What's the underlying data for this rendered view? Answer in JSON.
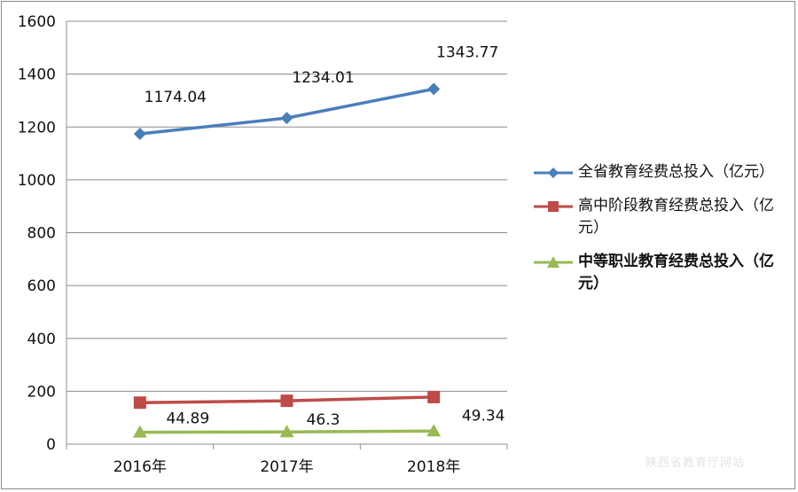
{
  "chart_data": {
    "type": "line",
    "categories": [
      "2016年",
      "2017年",
      "2018年"
    ],
    "ylim": [
      0,
      1600
    ],
    "yticks": [
      "0",
      "200",
      "400",
      "600",
      "800",
      "1000",
      "1200",
      "1400",
      "1600"
    ],
    "grid": true,
    "legend_position": "right",
    "series": [
      {
        "name": "全省教育经费总投入（亿元）",
        "values": [
          1174.04,
          1234.01,
          1343.77
        ],
        "labels": [
          "1174.04",
          "1234.01",
          "1343.77"
        ],
        "color": "#4a7ebb",
        "marker": "diamond"
      },
      {
        "name": "高中阶段教育经费总投入（亿元）",
        "values": [
          157,
          164,
          178
        ],
        "labels": [
          "",
          "",
          ""
        ],
        "color": "#be4b48",
        "marker": "square"
      },
      {
        "name": "中等职业教育经费总投入（亿元）",
        "values": [
          44.89,
          46.3,
          49.34
        ],
        "labels": [
          "44.89",
          "46.3",
          "49.34"
        ],
        "color": "#98b954",
        "marker": "triangle"
      }
    ]
  },
  "watermark": "陕西省教育厅网站"
}
